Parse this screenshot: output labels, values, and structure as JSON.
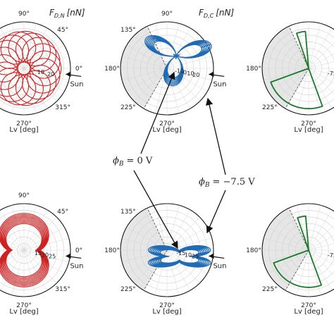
{
  "chart_data": [
    {
      "type": "polar-line",
      "title": "F_{D,N} [nN]",
      "title_parts": {
        "symbol": "F",
        "subscript": "D,N",
        "unit": "[nN]"
      },
      "xlabel": "Lv [deg]",
      "angle_ticks": [
        "90°",
        "45°",
        "0°",
        "315°",
        "270°"
      ],
      "radial_ticks": [
        "10",
        "20"
      ],
      "rmax": 28,
      "shaded_sector_deg": [],
      "sun_label": "Sun",
      "sun_angle_deg": -8,
      "series": [
        {
          "color": "#cc2222",
          "shape": "epicycloid",
          "n_loops": 18,
          "r_center": 14,
          "r_loop": 10,
          "width": 1.1
        }
      ]
    },
    {
      "type": "polar-line",
      "title": "F_{D,C} [nN]",
      "title_parts": {
        "symbol": "F",
        "subscript": "D,C",
        "unit": "[nN]"
      },
      "xlabel": "Lv [deg]",
      "angle_ticks": [
        "90°",
        "135°",
        "180°",
        "225°",
        "270°"
      ],
      "radial_ticks": [
        "-10",
        "0",
        "10",
        "20"
      ],
      "rmax": 30,
      "shaded_sector_deg": [
        115,
        240
      ],
      "sun_label": "Sun",
      "sun_angle_deg": -8,
      "series": [
        {
          "color": "#1f6bb5",
          "shape": "trefoil",
          "width": 1.3
        }
      ]
    },
    {
      "type": "polar-line",
      "title": "",
      "xlabel": "Lv [deg]",
      "angle_ticks": [
        "180°",
        "225°",
        "270°"
      ],
      "radial_ticks": [
        "-75"
      ],
      "rmax": 30,
      "shaded_sector_deg": [
        115,
        240
      ],
      "sun_label": "",
      "series": [
        {
          "color": "#1a7a2a",
          "shape": "wedge",
          "r_outer": 26,
          "width": 1.8
        }
      ]
    },
    {
      "type": "polar-line",
      "title": "",
      "xlabel": "Lv [deg]",
      "angle_ticks": [
        "90°",
        "45°",
        "0°",
        "315°",
        "270°"
      ],
      "radial_ticks": [
        "15",
        "20",
        "25"
      ],
      "rmax": 28,
      "shaded_sector_deg": [],
      "sun_label": "Sun",
      "sun_angle_deg": -8,
      "series": [
        {
          "color": "#cc2222",
          "shape": "butterfly",
          "n_loops": 9,
          "width": 1.1
        }
      ]
    },
    {
      "type": "polar-line",
      "title": "",
      "xlabel": "Lv [deg]",
      "angle_ticks": [
        "135°",
        "180°",
        "225°",
        "270°"
      ],
      "radial_ticks": [
        "-15",
        "10",
        "25"
      ],
      "rmax": 30,
      "shaded_sector_deg": [
        115,
        240
      ],
      "sun_label": "Sun",
      "sun_angle_deg": -8,
      "series": [
        {
          "color": "#1f6bb5",
          "shape": "fan",
          "width": 1.3
        }
      ]
    },
    {
      "type": "polar-line",
      "title": "",
      "xlabel": "Lv [deg]",
      "angle_ticks": [
        "180°",
        "225°",
        "270°"
      ],
      "radial_ticks": [
        "-75"
      ],
      "rmax": 30,
      "shaded_sector_deg": [
        115,
        240
      ],
      "sun_label": "",
      "series": [
        {
          "color": "#1a7a2a",
          "shape": "wedge",
          "r_outer": 24,
          "width": 1.8
        }
      ]
    }
  ],
  "annotations": [
    {
      "text": "ϕ_B = 0 V",
      "symbol": "ϕ",
      "subscript": "B",
      "rhs": "= 0 V"
    },
    {
      "text": "ϕ_B = −7.5 V",
      "symbol": "ϕ",
      "subscript": "B",
      "rhs": "= −7.5 V"
    }
  ]
}
